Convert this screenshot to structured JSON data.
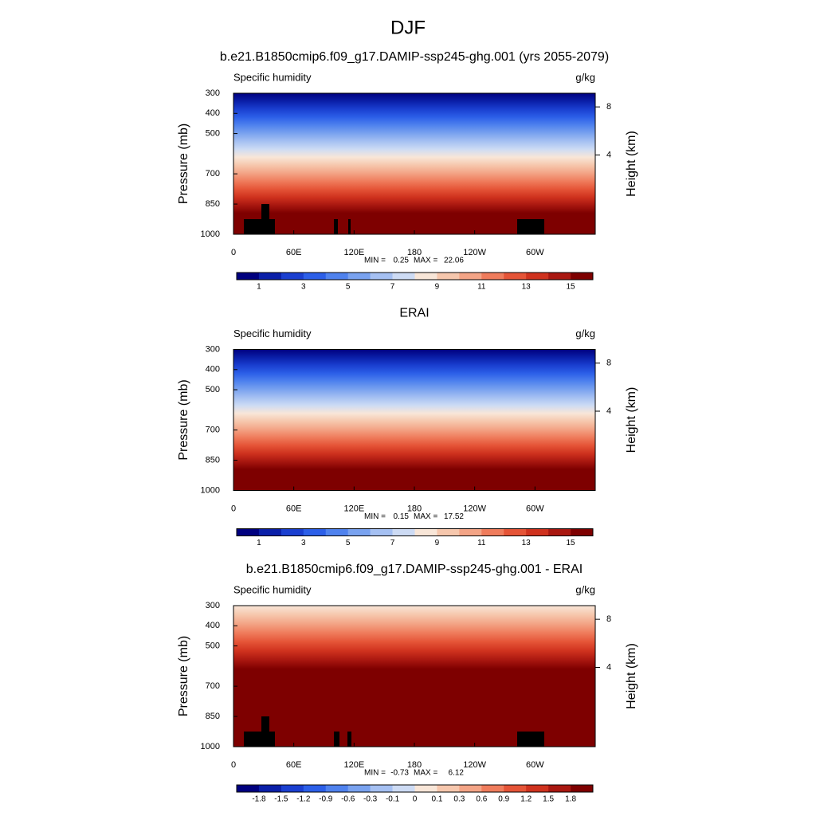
{
  "title": "DJF",
  "chart_data": [
    {
      "type": "contour",
      "title": "b.e21.B1850cmip6.f09_g17.DAMIP-ssp245-ghg.001 (yrs 2055-2079)",
      "left_label": "Specific humidity",
      "right_label": "g/kg",
      "ylabel": "Pressure (mb)",
      "y2label": "Height (km)",
      "xlim": [
        0,
        360
      ],
      "xticks": [
        0,
        {
          "value": 60,
          "label": "60E"
        },
        {
          "value": 120,
          "label": "120E"
        },
        180,
        {
          "value": 240,
          "label": "120W"
        },
        {
          "value": 300,
          "label": "60W"
        }
      ],
      "ylim": [
        1000,
        300
      ],
      "yticks": [
        300,
        400,
        500,
        700,
        850,
        1000
      ],
      "y2lim": [
        0,
        9.63
      ],
      "y2ticks": [
        4,
        8
      ],
      "y2scale": "log",
      "min_label": "MIN =",
      "min": 0.25,
      "max_label": "MAX =",
      "max": 22.06,
      "colorbar": {
        "colors": [
          "#00007f",
          "#0a1fa8",
          "#1a3fd0",
          "#2c5fe8",
          "#4f82ee",
          "#79a2ef",
          "#a5c0f2",
          "#cddbf4",
          "#f8e6d8",
          "#f6c7ad",
          "#f3a486",
          "#ef7c5c",
          "#e55437",
          "#cf321e",
          "#a91710",
          "#7e0000"
        ],
        "lim": [
          0,
          16
        ],
        "ticks": [
          1,
          3,
          5,
          7,
          9,
          11,
          13,
          15
        ]
      }
    },
    {
      "type": "contour",
      "title": "ERAI",
      "left_label": "Specific humidity",
      "right_label": "g/kg",
      "ylabel": "Pressure (mb)",
      "y2label": "Height (km)",
      "xlim": [
        0,
        360
      ],
      "xticks": [
        0,
        {
          "value": 60,
          "label": "60E"
        },
        {
          "value": 120,
          "label": "120E"
        },
        180,
        {
          "value": 240,
          "label": "120W"
        },
        {
          "value": 300,
          "label": "60W"
        }
      ],
      "ylim": [
        1000,
        300
      ],
      "yticks": [
        300,
        400,
        500,
        700,
        850,
        1000
      ],
      "y2lim": [
        0,
        9.63
      ],
      "y2ticks": [
        4,
        8
      ],
      "y2scale": "log",
      "min_label": "MIN =",
      "min": 0.15,
      "max_label": "MAX =",
      "max": 17.52,
      "colorbar": {
        "colors": [
          "#00007f",
          "#0a1fa8",
          "#1a3fd0",
          "#2c5fe8",
          "#4f82ee",
          "#79a2ef",
          "#a5c0f2",
          "#cddbf4",
          "#f8e6d8",
          "#f6c7ad",
          "#f3a486",
          "#ef7c5c",
          "#e55437",
          "#cf321e",
          "#a91710",
          "#7e0000"
        ],
        "lim": [
          0,
          16
        ],
        "ticks": [
          1,
          3,
          5,
          7,
          9,
          11,
          13,
          15
        ]
      }
    },
    {
      "type": "contour",
      "title": "b.e21.B1850cmip6.f09_g17.DAMIP-ssp245-ghg.001 - ERAI",
      "left_label": "Specific humidity",
      "right_label": "g/kg",
      "ylabel": "Pressure (mb)",
      "y2label": "Height (km)",
      "xlim": [
        0,
        360
      ],
      "xticks": [
        0,
        {
          "value": 60,
          "label": "60E"
        },
        {
          "value": 120,
          "label": "120E"
        },
        180,
        {
          "value": 240,
          "label": "120W"
        },
        {
          "value": 300,
          "label": "60W"
        }
      ],
      "ylim": [
        1000,
        300
      ],
      "yticks": [
        300,
        400,
        500,
        700,
        850,
        1000
      ],
      "y2lim": [
        0,
        9.63
      ],
      "y2ticks": [
        4,
        8
      ],
      "y2scale": "log",
      "min_label": "MIN =",
      "min": -0.73,
      "max_label": "MAX =",
      "max": 6.12,
      "colorbar": {
        "colors": [
          "#00007f",
          "#0a1fa8",
          "#1a3fd0",
          "#2c5fe8",
          "#4f82ee",
          "#79a2ef",
          "#a5c0f2",
          "#cddbf4",
          "#f8e6d8",
          "#f6c7ad",
          "#f3a486",
          "#ef7c5c",
          "#e55437",
          "#cf321e",
          "#a91710",
          "#7e0000"
        ],
        "levels": [
          -1.8,
          -1.5,
          -1.2,
          -0.9,
          -0.6,
          -0.3,
          -0.1,
          0,
          0.1,
          0.3,
          0.6,
          0.9,
          1.2,
          1.5,
          1.8
        ]
      }
    }
  ]
}
